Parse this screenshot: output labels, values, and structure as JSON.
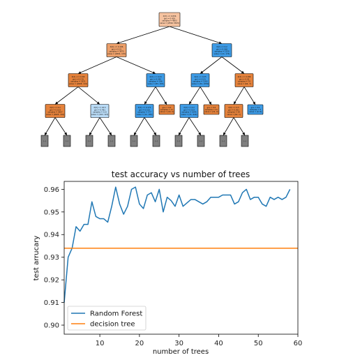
{
  "tree": {
    "colors": {
      "orange_light": "#f6c3a0",
      "orange": "#e5823b",
      "orange_mid": "#eda06a",
      "blue": "#3d9be6",
      "blue_light": "#b9dbf6",
      "gray": "#808080"
    },
    "nodes": [
      {
        "id": "n0",
        "color": "orange_light",
        "lines": [
          "X[3] <= 0.056",
          "gini = 0.429",
          "samples = 4803",
          "value = [2599, 5815]"
        ]
      },
      {
        "id": "n1",
        "color": "orange_mid",
        "lines": [
          "X[4] <= 0.196",
          "gini = 0.31",
          "samples = 3475",
          "value = [2691, 115]"
        ]
      },
      {
        "id": "n2",
        "color": "blue",
        "lines": [
          "X[2] <= 0.2",
          "gini = 0.166",
          "samples = 1220",
          "value = [11, 174]"
        ]
      },
      {
        "id": "n3",
        "color": "orange",
        "lines": [
          "X[2] <= 0.199",
          "gini = 0.176",
          "samples = 3321",
          "value = [2608, 110]"
        ]
      },
      {
        "id": "n4",
        "color": "blue",
        "lines": [
          "X[3] <= 0.24",
          "gini = 0.240",
          "samples = 196",
          "value = [83, 165]"
        ]
      },
      {
        "id": "n5",
        "color": "blue",
        "lines": [
          "X[2] <= 0.25",
          "gini = 0.151",
          "samples = 1160",
          "value = [30, 1050]"
        ]
      },
      {
        "id": "n6",
        "color": "orange",
        "lines": [
          "X[3] <= 0.189",
          "gini = 0.24",
          "samples = 70",
          "value = [64, 7]"
        ]
      },
      {
        "id": "n7",
        "color": "orange",
        "lines": [
          "X[2] <= 0.2",
          "gini = 0.103",
          "samples = 2607",
          "value = [2605, 110]"
        ]
      },
      {
        "id": "n8",
        "color": "blue_light",
        "lines": [
          "X[0] <= 24.5",
          "gini = 0.491",
          "samples = 113",
          "value = [163, 123]"
        ]
      },
      {
        "id": "n9",
        "color": "blue",
        "lines": [
          "X[4] <= 0.171",
          "gini = 0.102",
          "samples = 177",
          "value = [12, 183]"
        ]
      },
      {
        "id": "n10",
        "color": "orange",
        "lines": [
          "gini = 0.0",
          "samples = 11",
          "value = [19, 0]"
        ]
      },
      {
        "id": "n11",
        "color": "blue",
        "lines": [
          "X[4] <= 0.2",
          "gini = 0.103",
          "samples = 1045",
          "value = [31, 940]"
        ]
      },
      {
        "id": "n12",
        "color": "orange",
        "lines": [
          "gini = 0.0",
          "samples = 21",
          "value = [31, 0]"
        ]
      },
      {
        "id": "n13",
        "color": "orange",
        "lines": [
          "X[0] <= 0.5",
          "gini = 0.001",
          "samples = 59",
          "value = [62, 1]"
        ]
      },
      {
        "id": "n14",
        "color": "blue",
        "lines": [
          "gini = 0.0",
          "samples = 5",
          "value = [0, 8]"
        ]
      }
    ],
    "leaf_boxes": [
      "(...)",
      "(...)",
      "(...)",
      "(...)",
      "(...)",
      "(...)",
      "(...)",
      "(...)",
      "(...)",
      "(...)"
    ]
  },
  "chart_data": {
    "type": "line",
    "title": "test accuracy vs number of trees",
    "xlabel": "number of trees",
    "ylabel": "test arrucary",
    "xlim": [
      1,
      60
    ],
    "ylim": [
      0.896,
      0.9635
    ],
    "xticks": [
      10,
      20,
      30,
      40,
      50,
      60
    ],
    "yticks": [
      0.9,
      0.91,
      0.92,
      0.93,
      0.94,
      0.95,
      0.96
    ],
    "ytick_labels": [
      "0.90",
      "0.91",
      "0.92",
      "0.93",
      "0.94",
      "0.95",
      "0.96"
    ],
    "legend_position": "lower-left",
    "series": [
      {
        "name": "Random Forest",
        "color": "#1f77b4",
        "x": [
          1,
          2,
          3,
          4,
          5,
          6,
          7,
          8,
          9,
          10,
          11,
          12,
          13,
          14,
          15,
          16,
          17,
          18,
          19,
          20,
          21,
          22,
          23,
          24,
          25,
          26,
          27,
          28,
          29,
          30,
          31,
          32,
          33,
          34,
          35,
          36,
          37,
          38,
          39,
          40,
          41,
          42,
          43,
          44,
          45,
          46,
          47,
          48,
          49,
          50,
          51,
          52,
          53,
          54,
          55,
          56,
          57,
          58
        ],
        "values": [
          0.91,
          0.93,
          0.934,
          0.9435,
          0.9415,
          0.9445,
          0.9445,
          0.9545,
          0.948,
          0.947,
          0.947,
          0.9455,
          0.9525,
          0.961,
          0.9535,
          0.949,
          0.9525,
          0.96,
          0.961,
          0.9535,
          0.9515,
          0.9575,
          0.9585,
          0.9545,
          0.96,
          0.95,
          0.9565,
          0.955,
          0.9525,
          0.9575,
          0.9525,
          0.954,
          0.9555,
          0.9555,
          0.9545,
          0.9535,
          0.9545,
          0.9565,
          0.9565,
          0.9565,
          0.9575,
          0.9575,
          0.9575,
          0.9535,
          0.9545,
          0.9585,
          0.96,
          0.9555,
          0.9565,
          0.9565,
          0.9535,
          0.9525,
          0.9565,
          0.9555,
          0.9565,
          0.9555,
          0.9565,
          0.96
        ]
      },
      {
        "name": "decision tree",
        "color": "#ff7f0e",
        "x": [
          1,
          60
        ],
        "values": [
          0.934,
          0.934
        ]
      }
    ]
  }
}
